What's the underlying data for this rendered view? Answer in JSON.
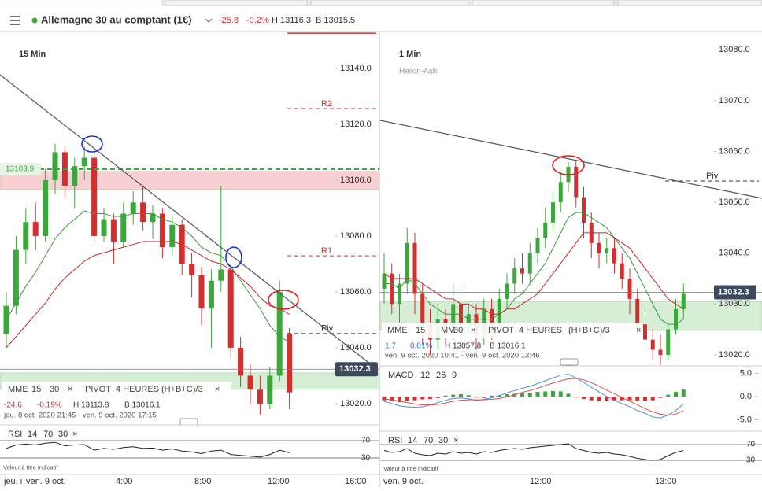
{
  "header": {
    "instrument": "Allemagne 30 au comptant (1€)",
    "change": "-25.8",
    "change_pct": "-0.2%",
    "high": "H 13116.3",
    "low": "B 13015.5"
  },
  "chart_data": [
    {
      "type": "candlestick",
      "timeframe": "15 Min",
      "ylim": [
        13015.2,
        13153.2
      ],
      "yticks": [
        {
          "value": 13020,
          "label": "13020.0"
        },
        {
          "value": 13040,
          "label": "13040.0"
        },
        {
          "value": 13060,
          "label": "13060.0"
        },
        {
          "value": 13080,
          "label": "13080.0"
        },
        {
          "value": 13100,
          "label": "13100.0"
        },
        {
          "value": 13120,
          "label": "13120.0"
        },
        {
          "value": 13140,
          "label": "13140.0"
        }
      ],
      "open": [
        13045,
        13055,
        13075,
        13085,
        13080,
        13100,
        13110,
        13098,
        13105,
        13108,
        13080,
        13086,
        13078,
        13088,
        13092,
        13085,
        13088,
        13076,
        13084,
        13070,
        13066,
        13054,
        13064,
        13068,
        13040,
        13030,
        13025,
        13020,
        13030,
        13045
      ],
      "high": [
        13060,
        13080,
        13090,
        13092,
        13104,
        13113,
        13112,
        13108,
        13112,
        13110,
        13090,
        13088,
        13092,
        13096,
        13098,
        13091,
        13090,
        13087,
        13086,
        13074,
        13069,
        13068,
        13098,
        13070,
        13044,
        13034,
        13030,
        13033,
        13064,
        13047
      ],
      "low": [
        13040,
        13052,
        13070,
        13075,
        13078,
        13095,
        13094,
        13090,
        13100,
        13077,
        13078,
        13070,
        13076,
        13084,
        13082,
        13079,
        13072,
        13073,
        13066,
        13058,
        13048,
        13040,
        13060,
        13036,
        13026,
        13020,
        13016,
        13018,
        13028,
        13018
      ],
      "close": [
        13055,
        13075,
        13085,
        13080,
        13100,
        13110,
        13098,
        13105,
        13108,
        13080,
        13086,
        13078,
        13088,
        13092,
        13085,
        13088,
        13076,
        13084,
        13070,
        13066,
        13054,
        13064,
        13068,
        13040,
        13030,
        13025,
        13020,
        13030,
        13060,
        13024
      ],
      "mme15": {
        "color": "#3a9a3a",
        "values": [
          13050,
          13056,
          13062,
          13067,
          13073,
          13079,
          13083,
          13086,
          13089,
          13088,
          13088,
          13087,
          13087,
          13088,
          13088,
          13088,
          13086,
          13085,
          13083,
          13080,
          13076,
          13074,
          13073,
          13069,
          13064,
          13059,
          13054,
          13048,
          13044,
          13042
        ]
      },
      "mme30": {
        "color": "#c62828",
        "values": [
          13040,
          13044,
          13048,
          13052,
          13056,
          13061,
          13065,
          13068,
          13071,
          13073,
          13074,
          13075,
          13076,
          13077,
          13078,
          13078,
          13078,
          13078,
          13077,
          13075,
          13073,
          13071,
          13070,
          13068,
          13065,
          13062,
          13058,
          13055,
          13054,
          13052
        ]
      },
      "levels": [
        {
          "label": "R2",
          "value": 13125.6,
          "color": "#d32f2f"
        },
        {
          "label": "R1",
          "value": 13072.9,
          "color": "#d32f2f"
        },
        {
          "label": "Piv",
          "value": 13045.1,
          "color": "#333333"
        },
        {
          "value": 13152.6,
          "color": "#d32f2f"
        }
      ],
      "zones": [
        {
          "from": 13096.6,
          "to": 13103.1,
          "color": "#f8d0d2"
        },
        {
          "from": 13025.1,
          "to": 13031,
          "color": "#d6eed6"
        }
      ],
      "marker": {
        "value": 13103.9,
        "label": "13103.9",
        "color": "#3aa83a"
      },
      "current": {
        "value": 13032.3,
        "label": "13032.3"
      },
      "legend_items": [
        "MME",
        "15",
        "30",
        "×",
        "PIVOT",
        "4 HEURES",
        "(H+B+C)/3",
        "×"
      ],
      "stats": [
        "-24.6",
        "-0.19%",
        "H 13113.8",
        "B 13016.1"
      ],
      "stats_color": "#d32f2f",
      "period": "jeu. 8 oct. 2020 21:45 - ven. 9 oct. 2020 17:15",
      "rsi": {
        "items": [
          "RSI",
          "14",
          "70",
          "30",
          "×"
        ],
        "ylim": [
          0,
          100
        ],
        "yticks": [
          30,
          70
        ],
        "values": [
          52,
          60,
          62,
          60,
          64,
          66,
          58,
          60,
          61,
          48,
          52,
          50,
          54,
          56,
          52,
          53,
          48,
          51,
          46,
          44,
          40,
          46,
          48,
          38,
          36,
          34,
          32,
          38,
          48,
          42
        ],
        "note": "Valeur à titre indicatif"
      },
      "time_labels": [
        "jeu. i",
        "ven. 9 oct.",
        "4:00",
        "8:00",
        "12:00",
        "16:00"
      ]
    },
    {
      "type": "candlestick",
      "timeframe": "1 Min",
      "subtitle": "Heikin-Ashi",
      "ylim": [
        13018.6,
        13083.6
      ],
      "yticks": [
        {
          "value": 13020,
          "label": "13020.0"
        },
        {
          "value": 13030,
          "label": "13030.0"
        },
        {
          "value": 13040,
          "label": "13040.0"
        },
        {
          "value": 13050,
          "label": "13050.0"
        },
        {
          "value": 13060,
          "label": "13060.0"
        },
        {
          "value": 13070,
          "label": "13070.0"
        },
        {
          "value": 13080,
          "label": "13080.0"
        }
      ],
      "open": [
        13033,
        13036,
        13030,
        13034,
        13042,
        13032,
        13026,
        13023,
        13027,
        13025,
        13030,
        13026,
        13028,
        13024,
        13029,
        13026,
        13031,
        13034,
        13037,
        13036,
        13040,
        13043,
        13046,
        13050,
        13054,
        13057,
        13051,
        13046,
        13042,
        13040,
        13041,
        13038,
        13035,
        13031,
        13026,
        13023,
        13021,
        13020,
        13025,
        13029
      ],
      "high": [
        13040,
        13038,
        13036,
        13045,
        13044,
        13034,
        13029,
        13030,
        13029,
        13034,
        13033,
        13030,
        13030,
        13031,
        13031,
        13033,
        13036,
        13039,
        13040,
        13042,
        13045,
        13049,
        13052,
        13056,
        13058,
        13058,
        13053,
        13048,
        13044,
        13043,
        13043,
        13040,
        13037,
        13033,
        13028,
        13025,
        13024,
        13026,
        13031,
        13034
      ],
      "low": [
        13030,
        13028,
        13026,
        13032,
        13028,
        13022,
        13020,
        13021,
        13022,
        13023,
        13022,
        13024,
        13021,
        13022,
        13023,
        13024,
        13029,
        13032,
        13034,
        13034,
        13038,
        13041,
        13044,
        13048,
        13052,
        13049,
        13043,
        13039,
        13037,
        13038,
        13036,
        13033,
        13028,
        13024,
        13021,
        13019,
        13018,
        13019,
        13024,
        13027
      ],
      "close": [
        13036,
        13030,
        13034,
        13042,
        13032,
        13026,
        13023,
        13027,
        13025,
        13030,
        13026,
        13028,
        13024,
        13029,
        13026,
        13031,
        13034,
        13037,
        13036,
        13040,
        13043,
        13046,
        13050,
        13054,
        13057,
        13051,
        13046,
        13042,
        13040,
        13041,
        13038,
        13035,
        13031,
        13026,
        13023,
        13021,
        13020,
        13025,
        13029,
        13032
      ],
      "mme15": {
        "color": "#3a9a3a",
        "values": [
          13034,
          13034,
          13033,
          13035,
          13034,
          13032,
          13030,
          13029,
          13028,
          13028,
          13028,
          13027,
          13027,
          13027,
          13027,
          13028,
          13029,
          13031,
          13032,
          13034,
          13036,
          13038,
          13041,
          13044,
          13047,
          13048,
          13048,
          13047,
          13046,
          13045,
          13043,
          13041,
          13039,
          13036,
          13033,
          13030,
          13027,
          13026,
          13026,
          13027
        ]
      },
      "mme30": {
        "color": "#c62828",
        "values": [
          13036,
          13035,
          13035,
          13035,
          13035,
          13034,
          13033,
          13032,
          13031,
          13031,
          13030,
          13030,
          13029,
          13029,
          13028,
          13028,
          13029,
          13029,
          13030,
          13031,
          13032,
          13034,
          13036,
          13038,
          13040,
          13042,
          13044,
          13044,
          13044,
          13044,
          13043,
          13042,
          13041,
          13039,
          13037,
          13035,
          13033,
          13031,
          13030,
          13029
        ]
      },
      "levels": [
        {
          "label": "Piv",
          "value": 13054.2,
          "color": "#333333"
        }
      ],
      "zones": [
        {
          "from": 13024.8,
          "to": 13030.5,
          "color": "#d6eed6"
        }
      ],
      "current": {
        "value": 13032.3,
        "label": "13032.3"
      },
      "legend_items": [
        "MME",
        "15",
        "MM",
        "30",
        "×",
        "PIVOT",
        "4 HEURES",
        "(H+B+C)/3",
        "×"
      ],
      "stats": [
        "1.7",
        "0.01%",
        "H 13057.8",
        "B 13016.1"
      ],
      "stats_color": "#2a6fc9",
      "period": "ven. 9 oct. 2020 10:41 - ven. 9 oct. 2020 13:46",
      "macd": {
        "items": [
          "MACD",
          "12",
          "26",
          "9"
        ],
        "ylim": [
          -6.95,
          6.6
        ],
        "yticks": [
          {
            "value": -5,
            "label": "-5.0"
          },
          {
            "value": 0,
            "label": "0.0"
          },
          {
            "value": 5,
            "label": "5.0"
          }
        ],
        "histogram": [
          -0.8,
          -1,
          -1.2,
          -1,
          -0.8,
          -0.6,
          -0.5,
          -0.3,
          0.2,
          0.4,
          0.5,
          0.3,
          -0.2,
          -0.3,
          0.2,
          0.3,
          0.5,
          0.6,
          0.7,
          0.8,
          1,
          1.1,
          1.2,
          1.1,
          0.6,
          -0.2,
          -0.5,
          -0.8,
          -1,
          -1,
          -0.9,
          -0.8,
          -0.8,
          -0.9,
          -1,
          -0.8,
          -0.3,
          0.4,
          1,
          1.5
        ],
        "macd": {
          "color": "#4a90d9",
          "values": [
            -1,
            -1.5,
            -2,
            -2.2,
            -2.3,
            -2.2,
            -1.8,
            -1.3,
            -0.8,
            -0.4,
            -0.3,
            -0.5,
            -0.8,
            -0.6,
            -0.3,
            0.2,
            0.8,
            1.3,
            1.8,
            2.2,
            2.8,
            3.4,
            4,
            4.6,
            4.8,
            4,
            3,
            2,
            1,
            0,
            -0.8,
            -1.5,
            -2.2,
            -3,
            -3.6,
            -4.4,
            -4.6,
            -4,
            -3,
            -1.6
          ]
        },
        "signal": {
          "color": "#e05050",
          "values": [
            -0.5,
            -0.7,
            -1,
            -1.3,
            -1.6,
            -1.8,
            -1.8,
            -1.7,
            -1.4,
            -1,
            -0.8,
            -0.7,
            -0.7,
            -0.7,
            -0.6,
            -0.4,
            -0.1,
            0.4,
            0.9,
            1.3,
            1.8,
            2.4,
            2.9,
            3.4,
            3.8,
            3.9,
            3.6,
            3,
            2.2,
            1.4,
            0.6,
            -0.2,
            -1,
            -1.8,
            -2.6,
            -3.3,
            -3.8,
            -4,
            -3.8,
            -3
          ]
        }
      },
      "rsi": {
        "items": [
          "RSI",
          "14",
          "70",
          "30",
          "×"
        ],
        "ylim": [
          0,
          100
        ],
        "yticks": [
          30,
          70
        ],
        "values": [
          55,
          50,
          52,
          60,
          48,
          44,
          42,
          48,
          46,
          52,
          48,
          50,
          46,
          52,
          50,
          55,
          58,
          60,
          58,
          62,
          64,
          66,
          68,
          70,
          72,
          60,
          55,
          50,
          48,
          50,
          46,
          44,
          40,
          35,
          32,
          30,
          32,
          42,
          50,
          55
        ],
        "note": "Valeur à titre indicatif"
      },
      "time_labels": [
        "ven. 9 oct.",
        "12:00",
        "13:00"
      ]
    }
  ]
}
